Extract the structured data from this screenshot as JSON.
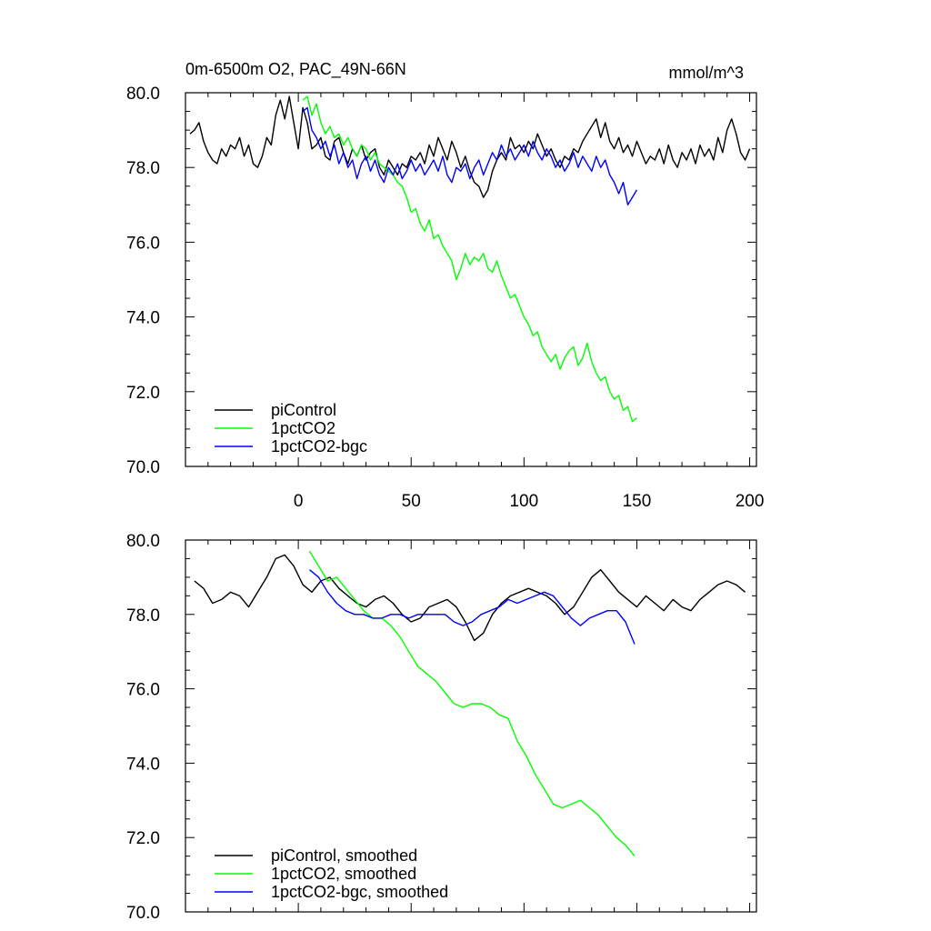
{
  "title_left": "0m-6500m O2, PAC_49N-66N",
  "title_right": "mmol/m^3",
  "chart_data": [
    {
      "type": "line",
      "xlim": [
        -50,
        203
      ],
      "ylim": [
        70.0,
        80.0
      ],
      "xticks": [
        0,
        50,
        100,
        150,
        200
      ],
      "xtick_labels": [
        "0",
        "50",
        "100",
        "150",
        "200"
      ],
      "yticks": [
        70.0,
        72.0,
        74.0,
        76.0,
        78.0,
        80.0
      ],
      "ytick_labels": [
        "70.0",
        "72.0",
        "74.0",
        "76.0",
        "78.0",
        "80.0"
      ],
      "legend": "bottom-left",
      "series": [
        {
          "name": "piControl",
          "color": "#000000",
          "x": [
            -48,
            -46,
            -44,
            -42,
            -40,
            -38,
            -36,
            -34,
            -32,
            -30,
            -28,
            -26,
            -24,
            -22,
            -20,
            -18,
            -16,
            -14,
            -12,
            -10,
            -8,
            -6,
            -4,
            -2,
            0,
            2,
            4,
            6,
            8,
            10,
            12,
            14,
            16,
            18,
            20,
            22,
            24,
            26,
            28,
            30,
            32,
            34,
            36,
            38,
            40,
            42,
            44,
            46,
            48,
            50,
            52,
            54,
            56,
            58,
            60,
            62,
            64,
            66,
            68,
            70,
            72,
            74,
            76,
            78,
            80,
            82,
            84,
            86,
            88,
            90,
            92,
            94,
            96,
            98,
            100,
            102,
            104,
            106,
            108,
            110,
            112,
            114,
            116,
            118,
            120,
            122,
            124,
            126,
            128,
            130,
            132,
            134,
            136,
            138,
            140,
            142,
            144,
            146,
            148,
            150,
            152,
            154,
            156,
            158,
            160,
            162,
            164,
            166,
            168,
            170,
            172,
            174,
            176,
            178,
            180,
            182,
            184,
            186,
            188,
            190,
            192,
            194,
            196,
            198,
            200
          ],
          "values": [
            78.9,
            79.0,
            79.2,
            78.7,
            78.4,
            78.2,
            78.1,
            78.5,
            78.3,
            78.6,
            78.5,
            78.8,
            78.3,
            78.6,
            78.1,
            78.0,
            78.3,
            78.8,
            78.6,
            79.4,
            79.8,
            79.3,
            79.9,
            79.2,
            78.5,
            79.6,
            79.2,
            78.5,
            78.6,
            78.8,
            78.3,
            78.2,
            78.7,
            78.8,
            78.4,
            78.1,
            78.5,
            78.3,
            78.6,
            78.2,
            78.4,
            78.5,
            78.0,
            77.8,
            78.2,
            78.0,
            77.8,
            78.1,
            78.0,
            78.3,
            78.2,
            78.4,
            78.1,
            78.6,
            78.3,
            78.8,
            78.5,
            78.2,
            78.7,
            78.4,
            78.0,
            78.3,
            77.9,
            77.6,
            77.5,
            77.2,
            77.4,
            77.9,
            78.2,
            78.4,
            78.2,
            78.8,
            78.5,
            78.6,
            78.4,
            78.7,
            78.5,
            78.9,
            78.6,
            78.3,
            78.5,
            78.2,
            78.0,
            78.3,
            78.2,
            78.5,
            78.4,
            78.7,
            78.9,
            79.1,
            79.3,
            78.8,
            79.2,
            78.7,
            78.5,
            78.8,
            78.4,
            78.6,
            78.3,
            78.7,
            78.4,
            78.1,
            78.3,
            78.2,
            78.5,
            78.1,
            78.6,
            78.2,
            78.0,
            78.4,
            78.2,
            78.5,
            78.1,
            78.6,
            78.3,
            78.5,
            78.2,
            78.8,
            78.4,
            79.0,
            79.3,
            78.9,
            78.4,
            78.2,
            78.5
          ]
        },
        {
          "name": "1pctCO2",
          "color": "#00ff00",
          "x": [
            2,
            4,
            6,
            8,
            10,
            12,
            14,
            16,
            18,
            20,
            22,
            24,
            26,
            28,
            30,
            32,
            34,
            36,
            38,
            40,
            42,
            44,
            46,
            48,
            50,
            52,
            54,
            56,
            58,
            60,
            62,
            64,
            66,
            68,
            70,
            72,
            74,
            76,
            78,
            80,
            82,
            84,
            86,
            88,
            90,
            92,
            94,
            96,
            98,
            100,
            102,
            104,
            106,
            108,
            110,
            112,
            114,
            116,
            118,
            120,
            122,
            124,
            126,
            128,
            130,
            132,
            134,
            136,
            138,
            140,
            142,
            144,
            146,
            148,
            150
          ],
          "values": [
            79.8,
            79.9,
            79.4,
            79.7,
            79.2,
            78.9,
            79.1,
            78.8,
            78.9,
            78.6,
            78.8,
            78.5,
            78.3,
            78.6,
            78.5,
            78.2,
            78.4,
            78.1,
            78.0,
            77.9,
            77.8,
            77.6,
            77.5,
            77.2,
            76.8,
            76.9,
            76.5,
            76.3,
            76.6,
            76.1,
            76.2,
            75.9,
            75.7,
            75.5,
            75.0,
            75.3,
            75.7,
            75.4,
            75.6,
            75.5,
            75.7,
            75.3,
            75.2,
            75.5,
            75.1,
            74.8,
            74.5,
            74.6,
            74.3,
            74.0,
            73.8,
            73.5,
            73.6,
            73.2,
            73.0,
            72.8,
            73.0,
            72.6,
            72.9,
            73.1,
            73.2,
            72.7,
            72.9,
            73.3,
            72.8,
            72.5,
            72.3,
            72.4,
            72.0,
            71.8,
            71.9,
            71.5,
            71.6,
            71.2,
            71.3
          ]
        },
        {
          "name": "1pctCO2-bgc",
          "color": "#0000ff",
          "x": [
            2,
            4,
            6,
            8,
            10,
            12,
            14,
            16,
            18,
            20,
            22,
            24,
            26,
            28,
            30,
            32,
            34,
            36,
            38,
            40,
            42,
            44,
            46,
            48,
            50,
            52,
            54,
            56,
            58,
            60,
            62,
            64,
            66,
            68,
            70,
            72,
            74,
            76,
            78,
            80,
            82,
            84,
            86,
            88,
            90,
            92,
            94,
            96,
            98,
            100,
            102,
            104,
            106,
            108,
            110,
            112,
            114,
            116,
            118,
            120,
            122,
            124,
            126,
            128,
            130,
            132,
            134,
            136,
            138,
            140,
            142,
            144,
            146,
            148,
            150
          ],
          "values": [
            79.5,
            79.6,
            79.0,
            78.8,
            78.5,
            78.7,
            78.3,
            78.6,
            78.1,
            78.4,
            78.0,
            78.2,
            77.7,
            78.1,
            78.3,
            77.9,
            78.2,
            77.8,
            77.6,
            78.0,
            77.8,
            78.1,
            77.7,
            77.9,
            78.2,
            77.9,
            78.1,
            77.8,
            78.0,
            78.2,
            77.9,
            78.3,
            77.8,
            77.6,
            78.0,
            77.9,
            78.1,
            77.7,
            78.0,
            78.2,
            77.8,
            78.1,
            78.4,
            78.2,
            78.6,
            78.3,
            78.5,
            78.2,
            78.4,
            78.6,
            78.3,
            78.7,
            78.4,
            78.2,
            78.5,
            78.3,
            78.0,
            78.2,
            77.9,
            78.1,
            78.4,
            78.0,
            78.3,
            78.1,
            77.9,
            78.3,
            78.0,
            78.2,
            77.8,
            77.6,
            77.3,
            77.6,
            77.0,
            77.2,
            77.4
          ]
        }
      ]
    },
    {
      "type": "line",
      "xlim": [
        -50,
        203
      ],
      "ylim": [
        70.0,
        80.0
      ],
      "xticks": [
        0,
        50,
        100,
        150,
        200
      ],
      "yticks": [
        70.0,
        72.0,
        74.0,
        76.0,
        78.0,
        80.0
      ],
      "ytick_labels": [
        "70.0",
        "72.0",
        "74.0",
        "76.0",
        "78.0",
        "80.0"
      ],
      "legend": "bottom-left",
      "series": [
        {
          "name": "piControl, smoothed",
          "color": "#000000",
          "x": [
            -46,
            -42,
            -38,
            -34,
            -30,
            -26,
            -22,
            -18,
            -14,
            -10,
            -6,
            -2,
            2,
            6,
            10,
            14,
            18,
            22,
            26,
            30,
            34,
            38,
            42,
            46,
            50,
            54,
            58,
            62,
            66,
            70,
            74,
            78,
            82,
            86,
            90,
            94,
            98,
            102,
            106,
            110,
            114,
            118,
            122,
            126,
            130,
            134,
            138,
            142,
            146,
            150,
            154,
            158,
            162,
            166,
            170,
            174,
            178,
            182,
            186,
            190,
            194,
            198
          ],
          "values": [
            78.9,
            78.7,
            78.3,
            78.4,
            78.6,
            78.5,
            78.2,
            78.6,
            79.0,
            79.5,
            79.6,
            79.3,
            78.8,
            78.6,
            78.9,
            79.0,
            78.7,
            78.5,
            78.3,
            78.2,
            78.4,
            78.5,
            78.3,
            78.0,
            77.8,
            77.9,
            78.2,
            78.3,
            78.4,
            78.2,
            77.8,
            77.3,
            77.5,
            78.0,
            78.3,
            78.5,
            78.6,
            78.7,
            78.6,
            78.5,
            78.3,
            78.0,
            78.2,
            78.6,
            79.0,
            79.2,
            78.9,
            78.6,
            78.4,
            78.2,
            78.5,
            78.3,
            78.1,
            78.4,
            78.2,
            78.1,
            78.4,
            78.6,
            78.8,
            78.9,
            78.8,
            78.6
          ]
        },
        {
          "name": "1pctCO2, smoothed",
          "color": "#00ff00",
          "x": [
            5,
            9,
            13,
            17,
            21,
            25,
            29,
            33,
            37,
            41,
            45,
            49,
            53,
            57,
            61,
            65,
            69,
            73,
            77,
            81,
            85,
            89,
            93,
            97,
            101,
            105,
            109,
            113,
            117,
            121,
            125,
            129,
            133,
            137,
            141,
            145,
            149
          ],
          "values": [
            79.7,
            79.3,
            78.9,
            79.0,
            78.7,
            78.4,
            78.1,
            77.9,
            77.9,
            77.7,
            77.4,
            77.0,
            76.6,
            76.4,
            76.2,
            75.9,
            75.6,
            75.5,
            75.6,
            75.6,
            75.5,
            75.3,
            75.2,
            74.6,
            74.2,
            73.7,
            73.3,
            72.9,
            72.8,
            72.9,
            73.0,
            72.8,
            72.6,
            72.3,
            72.0,
            71.8,
            71.5
          ]
        },
        {
          "name": "1pctCO2-bgc, smoothed",
          "color": "#0000ff",
          "x": [
            5,
            9,
            13,
            17,
            21,
            25,
            29,
            33,
            37,
            41,
            45,
            49,
            53,
            57,
            61,
            65,
            69,
            73,
            77,
            81,
            85,
            89,
            93,
            97,
            101,
            105,
            109,
            113,
            117,
            121,
            125,
            129,
            133,
            137,
            141,
            145,
            149
          ],
          "values": [
            79.2,
            79.0,
            78.6,
            78.3,
            78.1,
            78.0,
            78.0,
            77.9,
            77.9,
            78.0,
            78.0,
            77.9,
            78.0,
            78.0,
            78.0,
            78.0,
            77.8,
            77.7,
            77.8,
            78.0,
            78.1,
            78.2,
            78.4,
            78.3,
            78.4,
            78.5,
            78.6,
            78.5,
            78.2,
            77.9,
            77.7,
            77.9,
            78.0,
            78.1,
            78.1,
            77.8,
            77.2
          ]
        }
      ]
    }
  ]
}
